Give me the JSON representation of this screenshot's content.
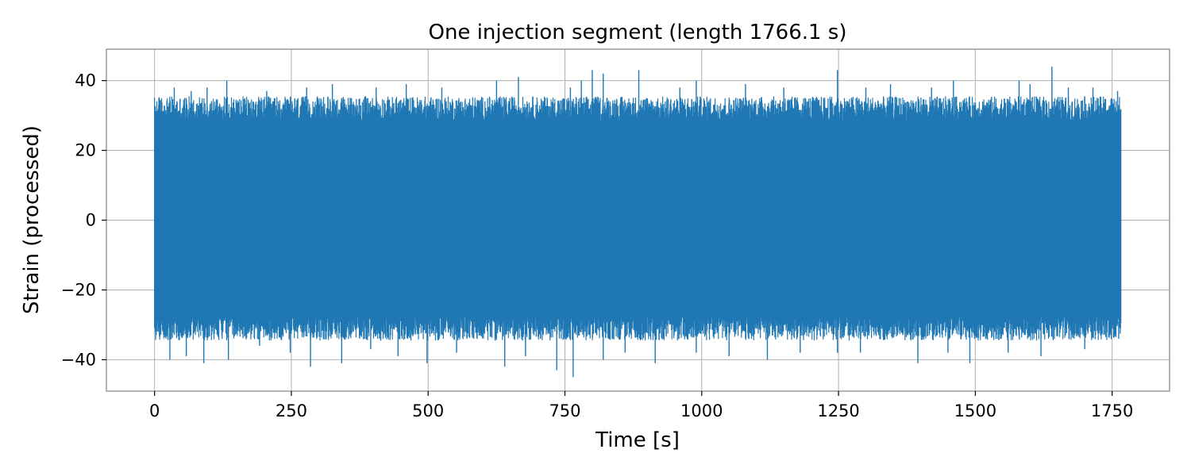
{
  "chart_data": {
    "type": "line",
    "title": "One injection segment (length 1766.1 s)",
    "xlabel": "Time [s]",
    "ylabel": "Strain (processed)",
    "xlim": [
      -88,
      1855
    ],
    "ylim": [
      -49,
      49
    ],
    "x_ticks": [
      0,
      250,
      500,
      750,
      1000,
      1250,
      1500,
      1750
    ],
    "x_tick_labels": [
      "0",
      "250",
      "500",
      "750",
      "1000",
      "1250",
      "1500",
      "1750"
    ],
    "y_ticks": [
      -40,
      -20,
      0,
      20,
      40
    ],
    "y_tick_labels": [
      "−40",
      "−20",
      "0",
      "20",
      "40"
    ],
    "grid": true,
    "legend": "none",
    "series": [
      {
        "color": "#1f77b4",
        "x_range": [
          0,
          1766.1
        ],
        "core_band": [
          -29,
          30
        ],
        "upper_spikes": [
          [
            8,
            35
          ],
          [
            36,
            38
          ],
          [
            67,
            37
          ],
          [
            96,
            38
          ],
          [
            132,
            40
          ],
          [
            205,
            37
          ],
          [
            278,
            38
          ],
          [
            325,
            39
          ],
          [
            405,
            38
          ],
          [
            460,
            39
          ],
          [
            525,
            38
          ],
          [
            625,
            40
          ],
          [
            665,
            41
          ],
          [
            760,
            38
          ],
          [
            780,
            40
          ],
          [
            800,
            43
          ],
          [
            820,
            42
          ],
          [
            885,
            43
          ],
          [
            960,
            38
          ],
          [
            990,
            40
          ],
          [
            1080,
            39
          ],
          [
            1150,
            38
          ],
          [
            1248,
            43
          ],
          [
            1300,
            38
          ],
          [
            1345,
            39
          ],
          [
            1420,
            38
          ],
          [
            1460,
            40
          ],
          [
            1580,
            40
          ],
          [
            1600,
            39
          ],
          [
            1640,
            44
          ],
          [
            1670,
            38
          ],
          [
            1715,
            38
          ],
          [
            1760,
            37
          ]
        ],
        "lower_spikes": [
          [
            3,
            -33
          ],
          [
            28,
            -40
          ],
          [
            58,
            -39
          ],
          [
            90,
            -41
          ],
          [
            135,
            -40
          ],
          [
            192,
            -36
          ],
          [
            248,
            -38
          ],
          [
            285,
            -42
          ],
          [
            342,
            -41
          ],
          [
            395,
            -37
          ],
          [
            445,
            -39
          ],
          [
            498,
            -41
          ],
          [
            552,
            -38
          ],
          [
            640,
            -42
          ],
          [
            678,
            -39
          ],
          [
            735,
            -43
          ],
          [
            765,
            -45
          ],
          [
            820,
            -40
          ],
          [
            860,
            -38
          ],
          [
            915,
            -41
          ],
          [
            990,
            -38
          ],
          [
            1050,
            -39
          ],
          [
            1120,
            -40
          ],
          [
            1180,
            -38
          ],
          [
            1248,
            -38
          ],
          [
            1290,
            -38
          ],
          [
            1395,
            -41
          ],
          [
            1450,
            -38
          ],
          [
            1490,
            -41
          ],
          [
            1560,
            -38
          ],
          [
            1620,
            -39
          ],
          [
            1700,
            -37
          ],
          [
            1762,
            -34
          ]
        ]
      }
    ]
  }
}
